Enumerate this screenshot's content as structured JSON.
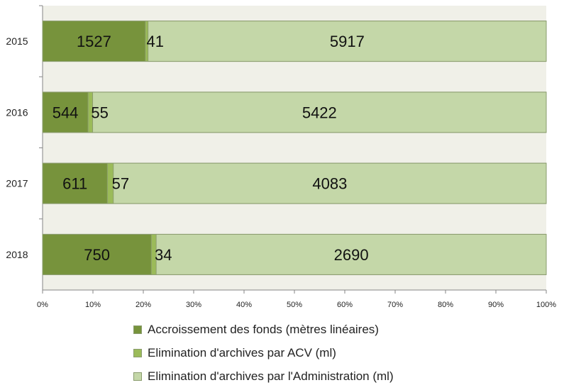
{
  "chart_data": {
    "type": "bar",
    "orientation": "horizontal",
    "stacked": "percent",
    "categories": [
      "2015",
      "2016",
      "2017",
      "2018"
    ],
    "series": [
      {
        "name": "Accroissement des fonds (mètres linéaires)",
        "color": "#77933c",
        "values": [
          1527,
          544,
          611,
          750
        ],
        "labels": [
          "1527",
          "544",
          "611",
          "750"
        ]
      },
      {
        "name": "Elimination d'archives par ACV (ml)",
        "color": "#9bbb59",
        "values": [
          41,
          55,
          57,
          34
        ],
        "labels": [
          "41",
          "55",
          "57",
          "34"
        ]
      },
      {
        "name": "Elimination d'archives par l'Administration (ml)",
        "color": "#c4d7a8",
        "values": [
          5917,
          5422,
          4083,
          2690
        ],
        "labels": [
          "5917",
          "5422",
          "4083",
          "2690"
        ]
      }
    ],
    "xticks": [
      "0%",
      "10%",
      "20%",
      "30%",
      "40%",
      "50%",
      "60%",
      "70%",
      "80%",
      "90%",
      "100%"
    ],
    "xlim": [
      0,
      100
    ],
    "plot_background": "#f0f0e8",
    "grid": false,
    "legend_position": "bottom"
  }
}
